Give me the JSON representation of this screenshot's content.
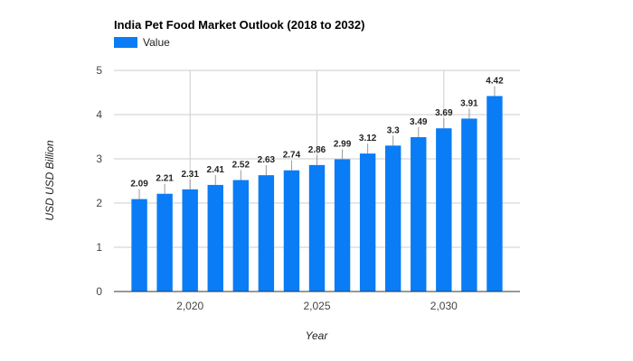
{
  "chart_data": {
    "type": "bar",
    "title": "India Pet Food Market Outlook (2018 to 2032)",
    "xlabel": "Year",
    "ylabel": "USD USD Billion",
    "legend": {
      "position": "top-left",
      "entries": [
        "Value"
      ]
    },
    "series": [
      {
        "name": "Value",
        "color": "#0a7cf5",
        "x": [
          2018,
          2019,
          2020,
          2021,
          2022,
          2023,
          2024,
          2025,
          2026,
          2027,
          2028,
          2029,
          2030,
          2031,
          2032
        ],
        "values": [
          2.09,
          2.21,
          2.31,
          2.41,
          2.52,
          2.63,
          2.74,
          2.86,
          2.99,
          3.12,
          3.3,
          3.49,
          3.69,
          3.91,
          4.42
        ]
      }
    ],
    "data_labels": [
      "2.09",
      "2.21",
      "2.31",
      "2.41",
      "2.52",
      "2.63",
      "2.74",
      "2.86",
      "2.99",
      "3.12",
      "3.3",
      "3.49",
      "3.69",
      "3.91",
      "4.42"
    ],
    "ylim": [
      0,
      5
    ],
    "xlim": [
      2017,
      2033
    ],
    "y_ticks": [
      0,
      1,
      2,
      3,
      4,
      5
    ],
    "y_tick_labels": [
      "0",
      "1",
      "2",
      "3",
      "4",
      "5"
    ],
    "x_ticks": [
      2020,
      2025,
      2030
    ],
    "x_tick_labels": [
      "2,020",
      "2,025",
      "2,030"
    ],
    "grid": true
  }
}
